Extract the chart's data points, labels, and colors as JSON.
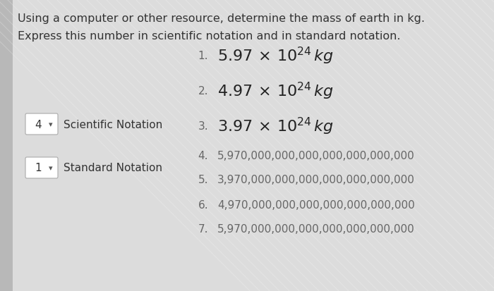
{
  "bg_color": "#dcdcdc",
  "left_strip_color": "#b8b8b8",
  "title_line1": "Using a computer or other resource, determine the mass of earth in kg.",
  "title_line2": "Express this number in scientific notation and in standard notation.",
  "sci_options": [
    {
      "num": "1.",
      "coeff": "5.97",
      "exp": "24"
    },
    {
      "num": "2.",
      "coeff": "4.97",
      "exp": "24"
    },
    {
      "num": "3.",
      "coeff": "3.97",
      "exp": "24"
    }
  ],
  "std_options": [
    {
      "num": "4.",
      "text": "5,970,000,000,000,000,000,000,000"
    },
    {
      "num": "5.",
      "text": "3,970,000,000,000,000,000,000,000"
    },
    {
      "num": "6.",
      "text": "4,970,000,000,000,000,000,000,000"
    },
    {
      "num": "7.",
      "text": "5,970,000,000,000,000,000,000,000"
    }
  ],
  "dropdown1_val": "4",
  "dropdown1_label": "Scientific Notation",
  "dropdown2_val": "1",
  "dropdown2_label": "Standard Notation",
  "title_color": "#333333",
  "num_color": "#666666",
  "sci_color": "#222222",
  "std_color": "#666666",
  "title_fs": 11.5,
  "sci_fs": 16,
  "std_fs": 11,
  "num_fs": 11,
  "dd_fs": 11
}
